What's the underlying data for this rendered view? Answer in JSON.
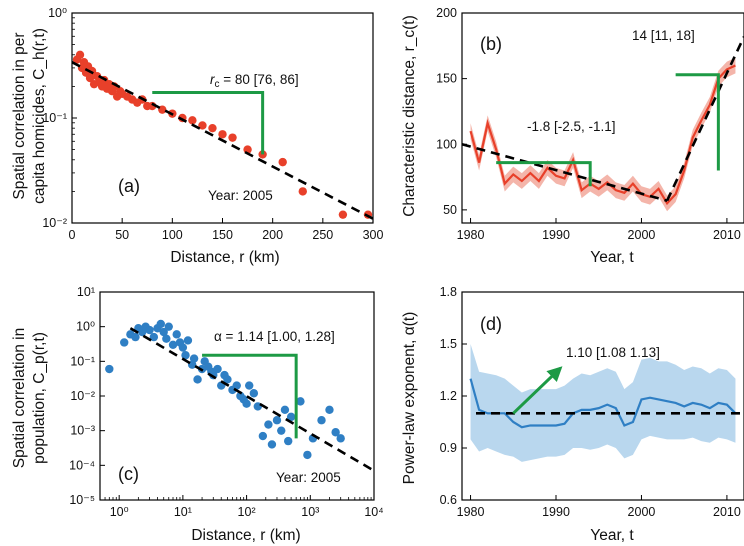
{
  "colors": {
    "red_series": "#e8402a",
    "red_band": "#f4b5aa",
    "blue_series": "#2f7fc4",
    "blue_band": "#b9d7ee",
    "annotation_green": "#1d9a45",
    "fit_line": "#000000"
  },
  "chart_data": [
    {
      "panel": "(a)",
      "type": "scatter",
      "xlabel": "Distance, r (km)",
      "ylabel": "Spatial correlation in per capita homicides, C_h(r,t)",
      "ylabel_lines": [
        "Spatial correlation in per",
        "capita homicides, C_h(r,t)"
      ],
      "xlim": [
        0,
        300
      ],
      "ylim": [
        0.01,
        1
      ],
      "yscale": "log",
      "xticks": [
        0,
        50,
        100,
        150,
        200,
        250,
        300
      ],
      "yticks": [
        0.01,
        0.1,
        1
      ],
      "ytick_labels": [
        "10⁻²",
        "10⁻¹",
        "10⁰"
      ],
      "points": [
        [
          5,
          0.36
        ],
        [
          8,
          0.4
        ],
        [
          10,
          0.3
        ],
        [
          12,
          0.34
        ],
        [
          14,
          0.27
        ],
        [
          16,
          0.31
        ],
        [
          18,
          0.24
        ],
        [
          20,
          0.28
        ],
        [
          22,
          0.21
        ],
        [
          25,
          0.25
        ],
        [
          27,
          0.22
        ],
        [
          30,
          0.2
        ],
        [
          32,
          0.23
        ],
        [
          35,
          0.19
        ],
        [
          37,
          0.21
        ],
        [
          40,
          0.18
        ],
        [
          42,
          0.2
        ],
        [
          45,
          0.16
        ],
        [
          48,
          0.18
        ],
        [
          50,
          0.17
        ],
        [
          55,
          0.16
        ],
        [
          60,
          0.15
        ],
        [
          65,
          0.14
        ],
        [
          70,
          0.15
        ],
        [
          75,
          0.13
        ],
        [
          80,
          0.13
        ],
        [
          90,
          0.12
        ],
        [
          100,
          0.11
        ],
        [
          110,
          0.1
        ],
        [
          120,
          0.095
        ],
        [
          130,
          0.085
        ],
        [
          140,
          0.08
        ],
        [
          150,
          0.07
        ],
        [
          160,
          0.065
        ],
        [
          175,
          0.05
        ],
        [
          190,
          0.045
        ],
        [
          210,
          0.038
        ],
        [
          230,
          0.02
        ],
        [
          270,
          0.012
        ],
        [
          295,
          0.012
        ]
      ],
      "fit": {
        "x": [
          0,
          300
        ],
        "y": [
          0.34,
          0.011
        ]
      },
      "annotation": {
        "label_prefix": "r",
        "label_sub": "c",
        "label_rest": " = 80 [76, 86]",
        "x_from": 80,
        "x_to": 190,
        "y_top": 0.175,
        "y_bottom": 0.045
      },
      "year_label": "Year: 2005"
    },
    {
      "panel": "(b)",
      "type": "line",
      "xlabel": "Year, t",
      "ylabel": "Characteristic distance, r_c(t)",
      "xlim": [
        1979,
        2012
      ],
      "ylim": [
        40,
        200
      ],
      "xticks": [
        1980,
        1990,
        2000,
        2010
      ],
      "yticks": [
        50,
        100,
        150,
        200
      ],
      "x": [
        1980,
        1981,
        1982,
        1983,
        1984,
        1985,
        1986,
        1987,
        1988,
        1989,
        1990,
        1991,
        1992,
        1993,
        1994,
        1995,
        1996,
        1997,
        1998,
        1999,
        2000,
        2001,
        2002,
        2003,
        2004,
        2005,
        2006,
        2007,
        2008,
        2009,
        2010,
        2011
      ],
      "y": [
        110,
        86,
        116,
        96,
        70,
        77,
        72,
        78,
        72,
        82,
        76,
        74,
        88,
        65,
        70,
        66,
        71,
        65,
        63,
        70,
        62,
        60,
        66,
        55,
        62,
        80,
        105,
        118,
        130,
        150,
        157,
        160
      ],
      "band_halfwidth": 6,
      "fit_segments": [
        {
          "x": [
            1979,
            2003
          ],
          "y": [
            100,
            57
          ]
        },
        {
          "x": [
            2003,
            2012
          ],
          "y": [
            57,
            182
          ]
        }
      ],
      "annotations": [
        {
          "label": "-1.8 [-2.5, -1.1]",
          "x_from": 1983,
          "x_to": 1994,
          "y_top": 86,
          "y_bottom": 68
        },
        {
          "label": "14 [11, 18]",
          "x_from": 2004,
          "x_to": 2009,
          "y_top": 153,
          "y_bottom": 80
        }
      ]
    },
    {
      "panel": "(c)",
      "type": "scatter",
      "xlabel": "Distance, r (km)",
      "ylabel": "Spatial correlation in population, C_p(r,t)",
      "ylabel_lines": [
        "Spatial correlation in",
        "population, C_p(r,t)"
      ],
      "xscale": "log",
      "yscale": "log",
      "xlim": [
        0.5,
        10000
      ],
      "ylim": [
        1e-05,
        10
      ],
      "xticks": [
        1,
        10,
        100,
        1000,
        10000
      ],
      "xtick_labels": [
        "10⁰",
        "10¹",
        "10²",
        "10³",
        "10⁴"
      ],
      "yticks": [
        1e-05,
        0.0001,
        0.001,
        0.01,
        0.1,
        1,
        10
      ],
      "ytick_labels": [
        "10⁻⁵",
        "10⁻⁴",
        "10⁻³",
        "10⁻²",
        "10⁻¹",
        "10⁰",
        "10¹"
      ],
      "points": [
        [
          0.7,
          0.06
        ],
        [
          1.2,
          0.35
        ],
        [
          1.5,
          0.6
        ],
        [
          1.8,
          0.5
        ],
        [
          2,
          0.9
        ],
        [
          2.3,
          0.7
        ],
        [
          2.6,
          1.0
        ],
        [
          3,
          0.8
        ],
        [
          3.5,
          0.5
        ],
        [
          4,
          0.9
        ],
        [
          4.5,
          1.2
        ],
        [
          5,
          0.7
        ],
        [
          5.5,
          0.45
        ],
        [
          6,
          1.0
        ],
        [
          7,
          0.3
        ],
        [
          8,
          0.6
        ],
        [
          9,
          0.35
        ],
        [
          10,
          0.25
        ],
        [
          11,
          0.15
        ],
        [
          12,
          0.4
        ],
        [
          14,
          0.08
        ],
        [
          15,
          0.12
        ],
        [
          17,
          0.03
        ],
        [
          20,
          0.06
        ],
        [
          22,
          0.1
        ],
        [
          25,
          0.07
        ],
        [
          28,
          0.05
        ],
        [
          30,
          0.04
        ],
        [
          35,
          0.06
        ],
        [
          40,
          0.02
        ],
        [
          45,
          0.04
        ],
        [
          50,
          0.03
        ],
        [
          60,
          0.015
        ],
        [
          70,
          0.02
        ],
        [
          80,
          0.01
        ],
        [
          90,
          0.008
        ],
        [
          100,
          0.006
        ],
        [
          110,
          0.02
        ],
        [
          130,
          0.012
        ],
        [
          150,
          0.005
        ],
        [
          180,
          0.0007
        ],
        [
          220,
          0.0015
        ],
        [
          250,
          0.0004
        ],
        [
          300,
          0.002
        ],
        [
          350,
          0.001
        ],
        [
          400,
          0.004
        ],
        [
          450,
          0.0005
        ],
        [
          500,
          0.0025
        ],
        [
          700,
          0.007
        ],
        [
          900,
          0.0002
        ],
        [
          1100,
          0.0006
        ],
        [
          1500,
          0.002
        ],
        [
          2000,
          0.004
        ],
        [
          2500,
          0.0009
        ],
        [
          3000,
          0.0006
        ]
      ],
      "fit": {
        "x": [
          1.5,
          10000
        ],
        "y": [
          0.9,
          7e-05
        ]
      },
      "annotation": {
        "label": "α = 1.14 [1.00, 1.28]",
        "x_from": 20,
        "x_to": 600,
        "y_top": 0.15,
        "y_bottom": 0.0006
      },
      "year_label": "Year: 2005"
    },
    {
      "panel": "(d)",
      "type": "line",
      "xlabel": "Year, t",
      "ylabel": "Power-law exponent, α(t)",
      "xlim": [
        1979,
        2012
      ],
      "ylim": [
        0.6,
        1.8
      ],
      "xticks": [
        1980,
        1990,
        2000,
        2010
      ],
      "yticks": [
        0.6,
        0.9,
        1.2,
        1.5,
        1.8
      ],
      "ytick_labels": [
        "0.6",
        "0.9",
        "1.2",
        "1.5",
        "1.8"
      ],
      "x": [
        1980,
        1981,
        1982,
        1983,
        1984,
        1985,
        1986,
        1987,
        1988,
        1989,
        1990,
        1991,
        1992,
        1993,
        1994,
        1995,
        1996,
        1997,
        1998,
        1999,
        2000,
        2001,
        2002,
        2003,
        2004,
        2005,
        2006,
        2007,
        2008,
        2009,
        2010,
        2011
      ],
      "y": [
        1.3,
        1.12,
        1.1,
        1.1,
        1.1,
        1.05,
        1.02,
        1.03,
        1.03,
        1.03,
        1.03,
        1.04,
        1.1,
        1.12,
        1.12,
        1.13,
        1.15,
        1.13,
        1.03,
        1.05,
        1.18,
        1.19,
        1.18,
        1.17,
        1.16,
        1.14,
        1.16,
        1.15,
        1.13,
        1.16,
        1.15,
        1.1
      ],
      "band_lower": [
        0.95,
        0.88,
        0.9,
        0.88,
        0.86,
        0.85,
        0.82,
        0.83,
        0.84,
        0.85,
        0.85,
        0.86,
        0.9,
        0.9,
        0.89,
        0.9,
        0.92,
        0.9,
        0.84,
        0.86,
        0.95,
        0.97,
        0.96,
        0.95,
        0.95,
        0.95,
        0.96,
        0.94,
        0.93,
        0.96,
        0.95,
        0.93
      ],
      "band_upper": [
        1.5,
        1.34,
        1.33,
        1.32,
        1.3,
        1.26,
        1.22,
        1.24,
        1.24,
        1.24,
        1.24,
        1.26,
        1.3,
        1.33,
        1.32,
        1.34,
        1.36,
        1.34,
        1.24,
        1.28,
        1.41,
        1.42,
        1.4,
        1.4,
        1.38,
        1.35,
        1.37,
        1.36,
        1.33,
        1.36,
        1.35,
        1.3
      ],
      "mean_line": 1.1,
      "annotation": {
        "label": "1.10 [1.08 1.13]",
        "arrow_from": [
          1985,
          1.1
        ],
        "arrow_to": [
          1990.5,
          1.36
        ]
      }
    }
  ]
}
